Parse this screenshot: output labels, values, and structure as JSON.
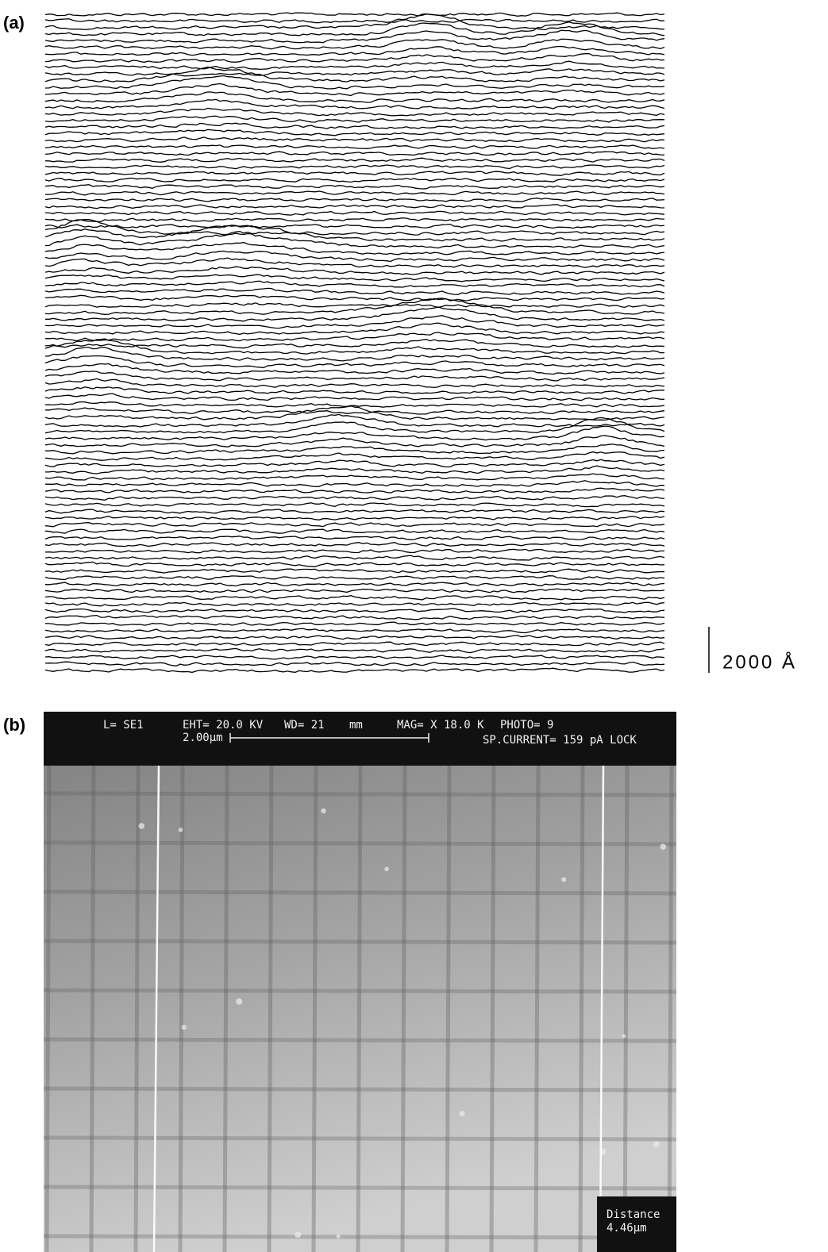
{
  "panel_a": {
    "label": "(a)",
    "scale_label": "2000 Å"
  },
  "panel_b": {
    "label": "(b)",
    "header": {
      "detector": "L= SE1",
      "eht": "EHT= 20.0 KV",
      "wd": "WD= 21",
      "wd_unit": "mm",
      "mag": "MAG= X 18.0 K",
      "photo": "PHOTO= 9",
      "scale_bar": "2.00µm",
      "current": "SP.CURRENT= 159 pA LOCK"
    },
    "measure": {
      "title": "Distance",
      "value": "4.46µm"
    }
  }
}
